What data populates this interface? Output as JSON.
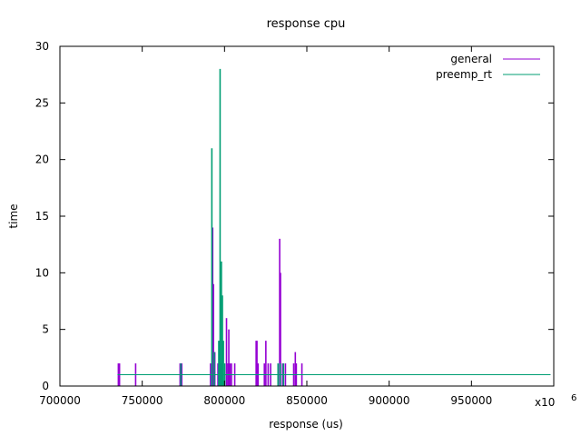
{
  "chart_data": {
    "type": "bar",
    "title": "response cpu",
    "xlabel": "response (us)",
    "ylabel": "time",
    "xlim": [
      700000,
      1000000
    ],
    "ylim": [
      0,
      30
    ],
    "x_scale_label": "x10",
    "x_scale_exponent": "6",
    "xticks": [
      {
        "value": 700000,
        "label": "700000"
      },
      {
        "value": 750000,
        "label": "750000"
      },
      {
        "value": 800000,
        "label": "800000"
      },
      {
        "value": 850000,
        "label": "850000"
      },
      {
        "value": 900000,
        "label": "900000"
      },
      {
        "value": 950000,
        "label": "950000"
      }
    ],
    "yticks": [
      {
        "value": 0,
        "label": "0"
      },
      {
        "value": 5,
        "label": "5"
      },
      {
        "value": 10,
        "label": "10"
      },
      {
        "value": 15,
        "label": "15"
      },
      {
        "value": 20,
        "label": "20"
      },
      {
        "value": 25,
        "label": "25"
      },
      {
        "value": 30,
        "label": "30"
      }
    ],
    "grid": false,
    "legend_position": "top-right",
    "series": [
      {
        "name": "general",
        "color": "#9400d3",
        "baseline": 1,
        "baseline_range": [
          735000,
          998000
        ],
        "spikes": [
          [
            735500,
            2
          ],
          [
            736200,
            2
          ],
          [
            746000,
            2
          ],
          [
            773000,
            2
          ],
          [
            774000,
            2
          ],
          [
            791500,
            2
          ],
          [
            792800,
            14
          ],
          [
            793300,
            9
          ],
          [
            794100,
            3
          ],
          [
            796000,
            2
          ],
          [
            797000,
            4
          ],
          [
            797800,
            2
          ],
          [
            801200,
            6
          ],
          [
            802000,
            2
          ],
          [
            802600,
            5
          ],
          [
            803300,
            2
          ],
          [
            804200,
            2
          ],
          [
            806200,
            2
          ],
          [
            819200,
            4
          ],
          [
            819700,
            4
          ],
          [
            820400,
            2
          ],
          [
            824200,
            2
          ],
          [
            825100,
            4
          ],
          [
            826500,
            2
          ],
          [
            828000,
            2
          ],
          [
            833500,
            13
          ],
          [
            834000,
            10
          ],
          [
            835300,
            2
          ],
          [
            837000,
            2
          ],
          [
            842000,
            2
          ],
          [
            843000,
            3
          ],
          [
            843600,
            2
          ],
          [
            847000,
            2
          ]
        ]
      },
      {
        "name": "preemp_rt",
        "color": "#009e73",
        "baseline": 1,
        "baseline_range": [
          735000,
          998000
        ],
        "spikes": [
          [
            773500,
            2
          ],
          [
            792300,
            21
          ],
          [
            793700,
            3
          ],
          [
            796500,
            4
          ],
          [
            797300,
            28
          ],
          [
            798100,
            11
          ],
          [
            798700,
            8
          ],
          [
            799300,
            4
          ],
          [
            800100,
            2
          ],
          [
            832500,
            2
          ],
          [
            833800,
            2
          ],
          [
            835800,
            2
          ]
        ]
      }
    ]
  }
}
